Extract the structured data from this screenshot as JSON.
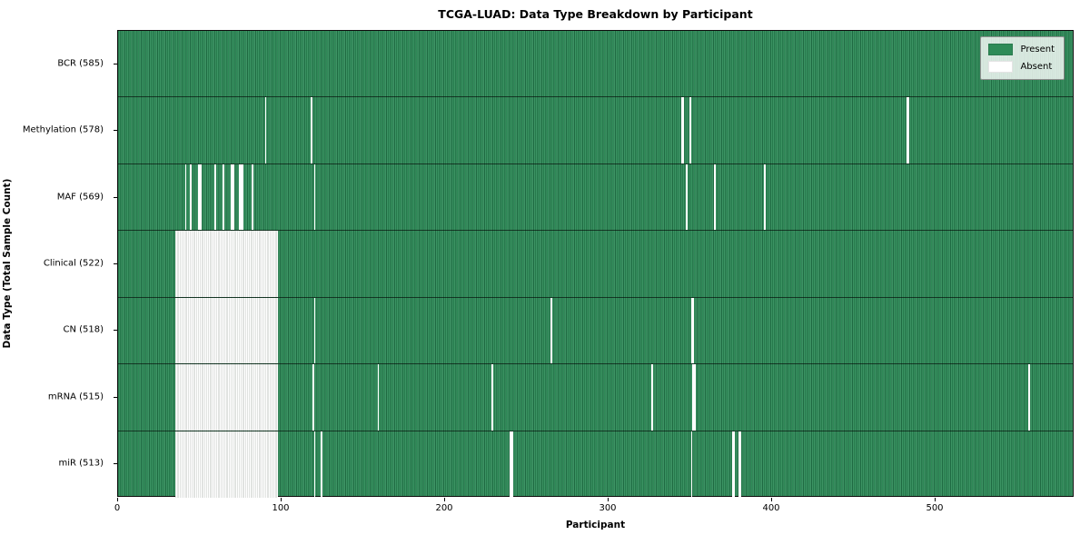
{
  "title": "TCGA-LUAD: Data Type Breakdown by Participant",
  "xlabel": "Participant",
  "ylabel": "Data Type (Total Sample Count)",
  "legend": {
    "present_label": "Present",
    "absent_label": "Absent"
  },
  "colors": {
    "present_green": "#2e8b57",
    "absent_white": "#ffffff",
    "row_divider": "#000000",
    "legend_border": "#8f8f8f"
  },
  "chart_data": {
    "type": "heatmap",
    "title": "TCGA-LUAD: Data Type Breakdown by Participant",
    "xlabel": "Participant",
    "ylabel": "Data Type (Total Sample Count)",
    "x_range": [
      0,
      585
    ],
    "x_ticks": [
      0,
      100,
      200,
      300,
      400,
      500
    ],
    "grid": false,
    "legend_position": "upper-right",
    "legend_entries": [
      "Present",
      "Absent"
    ],
    "rows": [
      {
        "label": "BCR (585)",
        "data_type": "BCR",
        "total_samples": 585,
        "absent_count": 0,
        "absent": []
      },
      {
        "label": "Methylation (578)",
        "data_type": "Methylation",
        "total_samples": 578,
        "absent_count": 7,
        "absent": [
          90,
          118,
          [
            345,
            346
          ],
          350,
          [
            483,
            484
          ]
        ]
      },
      {
        "label": "MAF (569)",
        "data_type": "MAF",
        "total_samples": 569,
        "absent_count": 16,
        "absent": [
          41,
          44,
          49,
          50,
          59,
          64,
          [
            69,
            70
          ],
          [
            74,
            76
          ],
          82,
          120,
          348,
          365,
          396
        ]
      },
      {
        "label": "Clinical (522)",
        "data_type": "Clinical",
        "total_samples": 522,
        "absent_count": 63,
        "absent": [
          [
            35,
            97
          ]
        ]
      },
      {
        "label": "CN (518)",
        "data_type": "CN",
        "total_samples": 518,
        "absent_count": 67,
        "absent": [
          [
            35,
            97
          ],
          120,
          265,
          [
            351,
            352
          ]
        ]
      },
      {
        "label": "mRNA (515)",
        "data_type": "mRNA",
        "total_samples": 515,
        "absent_count": 70,
        "absent": [
          [
            35,
            97
          ],
          119,
          159,
          229,
          327,
          [
            352,
            353
          ],
          558
        ]
      },
      {
        "label": "miR (513)",
        "data_type": "miR",
        "total_samples": 513,
        "absent_count": 72,
        "absent": [
          [
            35,
            97
          ],
          120,
          124,
          [
            240,
            241
          ],
          351,
          [
            376,
            377
          ],
          [
            380,
            381
          ]
        ]
      }
    ]
  }
}
